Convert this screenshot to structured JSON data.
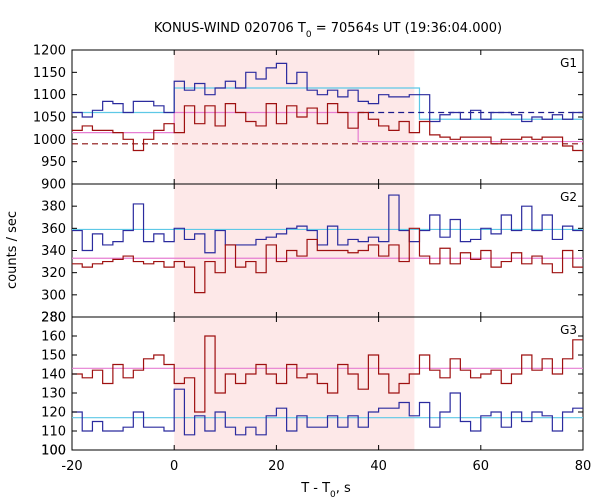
{
  "chart_data": {
    "type": "line",
    "title_main": "KONUS-WIND 020706 T",
    "title_sub": "0",
    "title_rest": " = 70564s UT (19:36:04.000)",
    "xlabel_main": "T - T",
    "xlabel_sub": "0",
    "xlabel_rest": ", s",
    "ylabel": "counts / sec",
    "xlim": [
      -20,
      80
    ],
    "x_ticks": [
      "-20",
      "0",
      "20",
      "40",
      "60",
      "80"
    ],
    "shaded_interval": [
      0,
      47
    ],
    "colors": {
      "blue": "#2b2b9e",
      "red": "#9e1010",
      "cyan": "#5ec8e6",
      "pink": "#e67ed2",
      "shade": "#fde8e8",
      "dash_blue": "#1a1a8c",
      "dash_red": "#8c1010"
    },
    "bin_edges": [
      -20,
      -18,
      -16,
      -14,
      -12,
      -10,
      -8,
      -6,
      -4,
      -2,
      0,
      2,
      4,
      6,
      8,
      10,
      12,
      14,
      16,
      18,
      20,
      22,
      24,
      26,
      28,
      30,
      32,
      34,
      36,
      38,
      40,
      42,
      44,
      46,
      48,
      50,
      52,
      54,
      56,
      58,
      60,
      62,
      64,
      66,
      68,
      70,
      72,
      74,
      76,
      78,
      80
    ],
    "panels": [
      {
        "label": "G1",
        "ylim": [
          900,
          1200
        ],
        "y_ticks": [
          "950",
          "1000",
          "1050",
          "1100",
          "1150",
          "1200"
        ],
        "series": [
          {
            "color": "blue",
            "values": [
              1060,
              1050,
              1065,
              1085,
              1080,
              1060,
              1085,
              1085,
              1075,
              1060,
              1130,
              1110,
              1125,
              1100,
              1115,
              1130,
              1115,
              1150,
              1135,
              1160,
              1170,
              1125,
              1150,
              1110,
              1100,
              1110,
              1095,
              1110,
              1085,
              1080,
              1100,
              1095,
              1095,
              1100,
              1100,
              1040,
              1055,
              1060,
              1045,
              1065,
              1045,
              1060,
              1060,
              1055,
              1040,
              1050,
              1045,
              1055,
              1045,
              1060
            ]
          },
          {
            "color": "red",
            "values": [
              1020,
              1030,
              1020,
              1020,
              1015,
              1000,
              975,
              1000,
              1020,
              1035,
              1015,
              1075,
              1035,
              1075,
              1030,
              1080,
              1060,
              1040,
              1030,
              1080,
              1035,
              1075,
              1050,
              1070,
              1035,
              1080,
              1060,
              1025,
              1060,
              1045,
              1030,
              1020,
              1040,
              1015,
              1040,
              1010,
              1005,
              1000,
              1005,
              1005,
              1005,
              990,
              1000,
              1000,
              1005,
              1000,
              1005,
              1005,
              985,
              975
            ]
          }
        ],
        "steps": [
          {
            "color": "cyan",
            "segments": [
              [
                -20,
                0,
                1060
              ],
              [
                0,
                48,
                1115
              ],
              [
                48,
                80,
                1045
              ]
            ]
          },
          {
            "color": "pink",
            "segments": [
              [
                -20,
                0,
                1015
              ],
              [
                0,
                36,
                1060
              ],
              [
                36,
                80,
                995
              ]
            ]
          }
        ],
        "dashed": [
          {
            "color": "dash_blue",
            "y": 1060,
            "x_start": 36
          },
          {
            "color": "dash_red",
            "y": 990,
            "x_start": -20
          }
        ]
      },
      {
        "label": "G2",
        "ylim": [
          280,
          400
        ],
        "y_ticks": [
          "280",
          "300",
          "320",
          "340",
          "360",
          "380"
        ],
        "series": [
          {
            "color": "blue",
            "values": [
              358,
              340,
              355,
              345,
              348,
              358,
              382,
              348,
              355,
              348,
              360,
              350,
              355,
              338,
              358,
              345,
              345,
              345,
              350,
              352,
              355,
              360,
              362,
              358,
              345,
              362,
              345,
              350,
              348,
              352,
              348,
              390,
              358,
              348,
              358,
              372,
              352,
              368,
              348,
              350,
              360,
              355,
              372,
              358,
              380,
              358,
              372,
              350,
              362,
              358
            ]
          },
          {
            "color": "red",
            "values": [
              328,
              325,
              328,
              330,
              332,
              335,
              330,
              328,
              330,
              325,
              330,
              325,
              302,
              330,
              320,
              345,
              325,
              330,
              320,
              345,
              330,
              340,
              335,
              350,
              340,
              340,
              340,
              338,
              340,
              345,
              335,
              345,
              330,
              360,
              335,
              328,
              342,
              328,
              338,
              332,
              340,
              325,
              330,
              338,
              328,
              335,
              328,
              320,
              340,
              325
            ]
          }
        ],
        "steps": [
          {
            "color": "cyan",
            "segments": [
              [
                -20,
                80,
                359
              ]
            ]
          },
          {
            "color": "pink",
            "segments": [
              [
                -20,
                80,
                333
              ]
            ]
          }
        ],
        "dashed": []
      },
      {
        "label": "G3",
        "ylim": [
          100,
          170
        ],
        "y_ticks": [
          "100",
          "110",
          "120",
          "130",
          "140",
          "150",
          "160"
        ],
        "series": [
          {
            "color": "blue",
            "values": [
              120,
              110,
              115,
              110,
              110,
              112,
              120,
              112,
              112,
              110,
              132,
              108,
              118,
              110,
              120,
              112,
              108,
              112,
              108,
              118,
              122,
              110,
              118,
              112,
              112,
              118,
              112,
              118,
              112,
              120,
              122,
              122,
              125,
              118,
              125,
              112,
              120,
              130,
              115,
              110,
              118,
              120,
              112,
              120,
              115,
              120,
              118,
              110,
              120,
              122
            ]
          },
          {
            "color": "red",
            "values": [
              140,
              138,
              142,
              135,
              145,
              138,
              142,
              148,
              150,
              145,
              135,
              138,
              120,
              160,
              130,
              140,
              135,
              140,
              145,
              140,
              135,
              145,
              138,
              140,
              135,
              130,
              145,
              140,
              132,
              150,
              140,
              130,
              135,
              140,
              150,
              142,
              138,
              148,
              142,
              138,
              140,
              142,
              135,
              140,
              150,
              142,
              148,
              140,
              148,
              158
            ]
          }
        ],
        "steps": [
          {
            "color": "cyan",
            "segments": [
              [
                -20,
                80,
                117
              ]
            ]
          },
          {
            "color": "pink",
            "segments": [
              [
                -20,
                80,
                143
              ]
            ]
          }
        ],
        "dashed": []
      }
    ]
  }
}
